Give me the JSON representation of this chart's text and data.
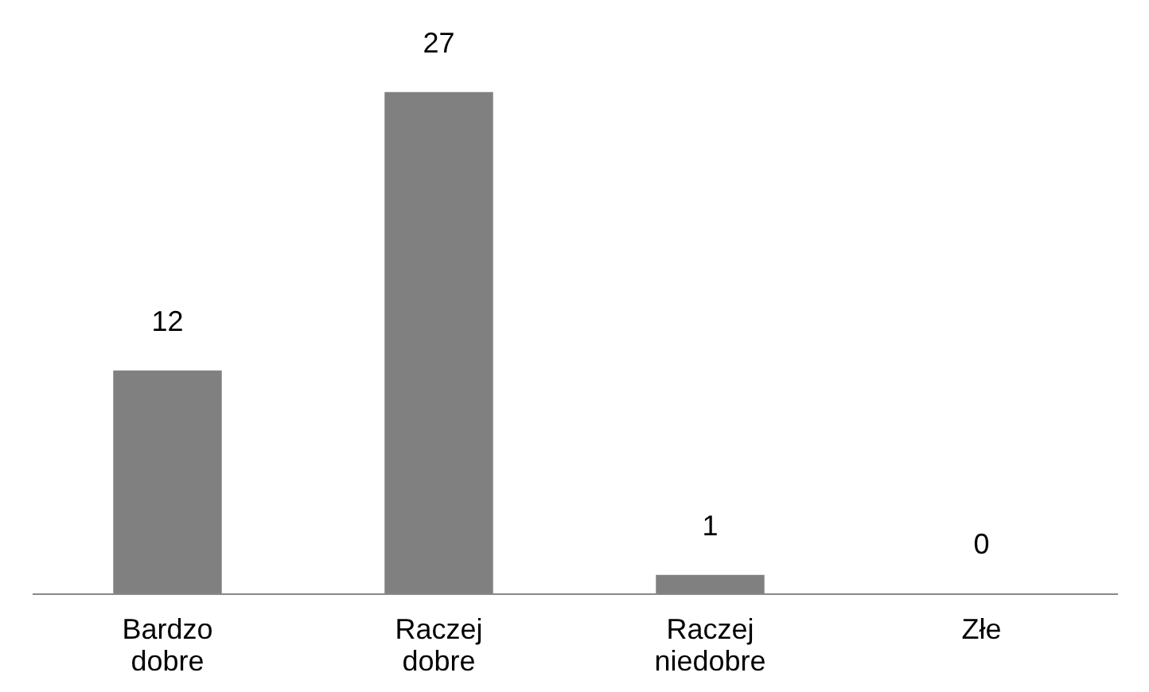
{
  "chart_data": {
    "type": "bar",
    "categories": [
      "Bardzo dobre",
      "Raczej dobre",
      "Raczej niedobre",
      "Złe"
    ],
    "values": [
      12,
      27,
      1,
      0
    ],
    "color": "#808080",
    "data_labels": true
  }
}
